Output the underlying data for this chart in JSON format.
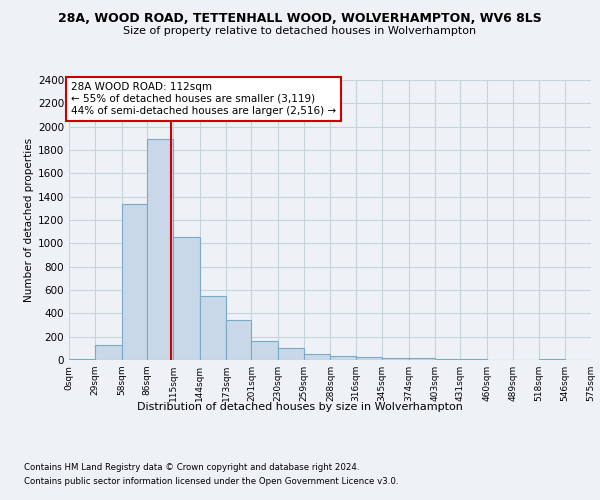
{
  "title": "28A, WOOD ROAD, TETTENHALL WOOD, WOLVERHAMPTON, WV6 8LS",
  "subtitle": "Size of property relative to detached houses in Wolverhampton",
  "xlabel": "Distribution of detached houses by size in Wolverhampton",
  "ylabel": "Number of detached properties",
  "footnote1": "Contains HM Land Registry data © Crown copyright and database right 2024.",
  "footnote2": "Contains public sector information licensed under the Open Government Licence v3.0.",
  "bin_edges": [
    0,
    29,
    58,
    86,
    115,
    144,
    173,
    201,
    230,
    259,
    288,
    316,
    345,
    374,
    403,
    431,
    460,
    489,
    518,
    546,
    575
  ],
  "bar_heights": [
    10,
    125,
    1340,
    1890,
    1050,
    545,
    340,
    160,
    100,
    50,
    35,
    25,
    20,
    15,
    5,
    5,
    0,
    0,
    5,
    0
  ],
  "bar_color": "#c8d8e8",
  "bar_edgecolor": "#7aaac8",
  "grid_color": "#c8d4dc",
  "property_size": 112,
  "annotation_title": "28A WOOD ROAD: 112sqm",
  "annotation_line1": "← 55% of detached houses are smaller (3,119)",
  "annotation_line2": "44% of semi-detached houses are larger (2,516) →",
  "annotation_box_edgecolor": "#cc0000",
  "vline_color": "#cc0000",
  "ylim": [
    0,
    2400
  ],
  "tick_labels": [
    "0sqm",
    "29sqm",
    "58sqm",
    "86sqm",
    "115sqm",
    "144sqm",
    "173sqm",
    "201sqm",
    "230sqm",
    "259sqm",
    "288sqm",
    "316sqm",
    "345sqm",
    "374sqm",
    "403sqm",
    "431sqm",
    "460sqm",
    "489sqm",
    "518sqm",
    "546sqm",
    "575sqm"
  ],
  "background_color": "#eef2f6",
  "plot_bg_color": "#eef2f6",
  "yticks": [
    0,
    200,
    400,
    600,
    800,
    1000,
    1200,
    1400,
    1600,
    1800,
    2000,
    2200,
    2400
  ]
}
